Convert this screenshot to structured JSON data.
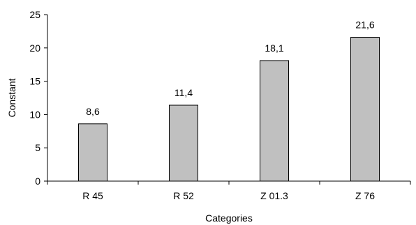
{
  "chart_data": {
    "type": "bar",
    "categories": [
      "R 45",
      "R 52",
      "Z 01.3",
      "Z 76"
    ],
    "values": [
      8.6,
      11.4,
      18.1,
      21.6
    ],
    "data_labels": [
      "8,6",
      "11,4",
      "18,1",
      "21,6"
    ],
    "title": "",
    "xlabel": "Categories",
    "ylabel": "Constant",
    "ylim": [
      0,
      25
    ],
    "yticks": [
      0,
      5,
      10,
      15,
      20,
      25
    ],
    "ytick_labels": [
      "0",
      "5",
      "10",
      "15",
      "20",
      "25"
    ],
    "grid": false,
    "legend": "none",
    "bar_color": "#c0c0c0",
    "bar_edge_color": "#000000"
  }
}
